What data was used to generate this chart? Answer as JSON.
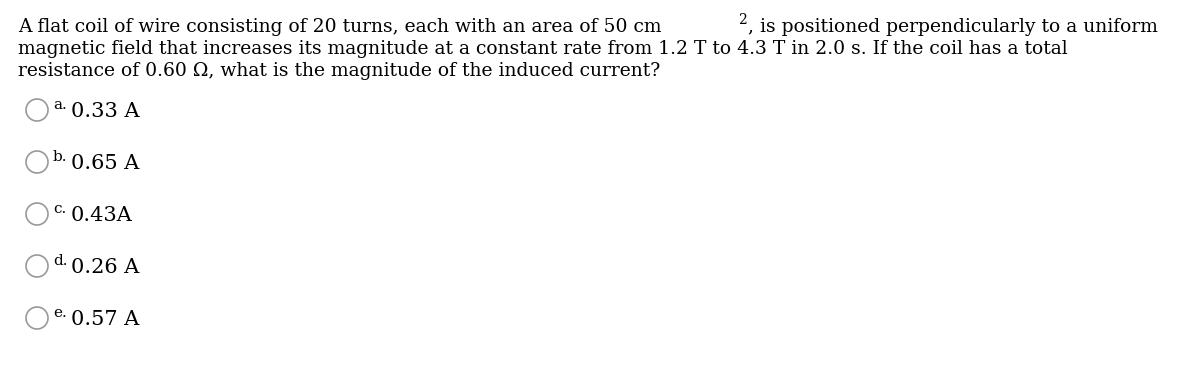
{
  "background_color": "#ffffff",
  "q_line1_pre": "A flat coil of wire consisting of 20 turns, each with an area of 50 cm",
  "q_superscript": "2",
  "q_line1_post": ", is positioned perpendicularly to a uniform",
  "q_line2": "magnetic field that increases its magnitude at a constant rate from 1.2 T to 4.3 T in 2.0 s. If the coil has a total",
  "q_line3": "resistance of 0.60 Ω, what is the magnitude of the induced current?",
  "choices": [
    {
      "label": "a.",
      "text": "0.33 A"
    },
    {
      "label": "b.",
      "text": "0.65 A"
    },
    {
      "label": "c.",
      "text": "0.43A"
    },
    {
      "label": "d.",
      "text": "0.26 A"
    },
    {
      "label": "e.",
      "text": "0.57 A"
    }
  ],
  "font_size_q": 13.5,
  "font_size_label": 11.0,
  "font_size_choice": 15.0,
  "font_size_super": 10.0,
  "text_color": "#000000",
  "circle_color": "#999999"
}
